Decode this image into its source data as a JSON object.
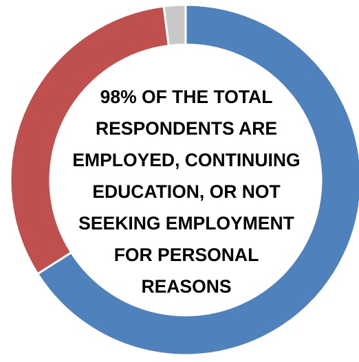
{
  "chart_data": {
    "type": "pie",
    "variant": "donut",
    "values": [
      66.0,
      32.0,
      2.0
    ],
    "colors": [
      "#4F81BD",
      "#C0504D",
      "#C8C8C8"
    ],
    "start_angle_deg": 0,
    "direction": "clockwise",
    "center_label": "98% OF THE TOTAL\nRESPONDENTS ARE\nEMPLOYED, CONTINUING\nEDUCATION, OR NOT\nSEEKING EMPLOYMENT\nFOR PERSONAL\nREASONS",
    "title": "",
    "legend": "none"
  }
}
